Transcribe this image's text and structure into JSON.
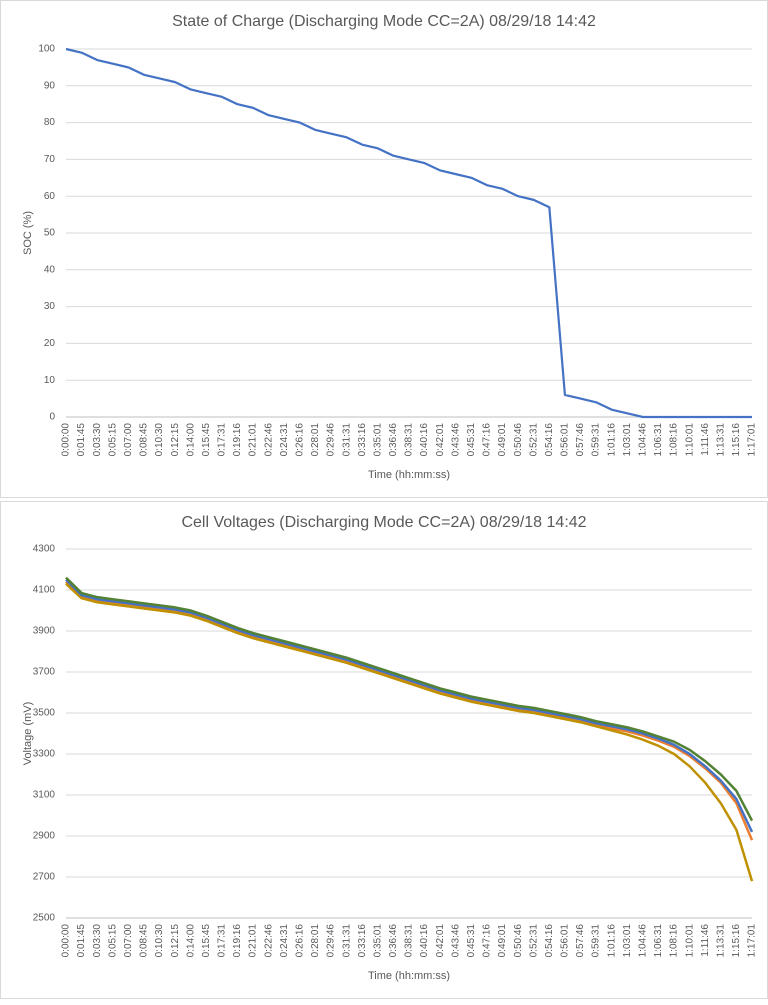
{
  "chart_data": [
    {
      "type": "line",
      "title": "State of Charge (Discharging Mode CC=2A) 08/29/18 14:42",
      "x_label": "Time (hh:mm:ss)",
      "y_label": "SOC (%)",
      "categories": [
        "0:00:00",
        "0:01:45",
        "0:03:30",
        "0:05:15",
        "0:07:00",
        "0:08:45",
        "0:10:30",
        "0:12:15",
        "0:14:00",
        "0:15:45",
        "0:17:31",
        "0:19:16",
        "0:21:01",
        "0:22:46",
        "0:24:31",
        "0:26:16",
        "0:28:01",
        "0:29:46",
        "0:31:31",
        "0:33:16",
        "0:35:01",
        "0:36:46",
        "0:38:31",
        "0:40:16",
        "0:42:01",
        "0:43:46",
        "0:45:31",
        "0:47:16",
        "0:49:01",
        "0:50:46",
        "0:52:31",
        "0:54:16",
        "0:56:01",
        "0:57:46",
        "0:59:31",
        "1:01:16",
        "1:03:01",
        "1:04:46",
        "1:06:31",
        "1:08:16",
        "1:10:01",
        "1:11:46",
        "1:13:31",
        "1:15:16",
        "1:17:01"
      ],
      "series": [
        {
          "color": "#4472c4",
          "values": [
            100,
            99,
            97,
            96,
            95,
            93,
            92,
            91,
            89,
            88,
            87,
            85,
            84,
            82,
            81,
            80,
            78,
            77,
            76,
            74,
            73,
            71,
            70,
            69,
            67,
            66,
            65,
            63,
            62,
            60,
            59,
            57,
            6,
            5,
            4,
            2,
            1,
            0,
            0,
            0,
            0,
            0,
            0,
            0,
            0
          ]
        }
      ],
      "ylim": [
        0,
        100
      ],
      "yticks": [
        0,
        10,
        20,
        30,
        40,
        50,
        60,
        70,
        80,
        90,
        100
      ],
      "grid": true
    },
    {
      "type": "line",
      "title": "Cell Voltages (Discharging Mode CC=2A) 08/29/18 14:42",
      "x_label": "Time (hh:mm:ss)",
      "y_label": "Voltage (mV)",
      "categories": [
        "0:00:00",
        "0:01:45",
        "0:03:30",
        "0:05:15",
        "0:07:00",
        "0:08:45",
        "0:10:30",
        "0:12:15",
        "0:14:00",
        "0:15:45",
        "0:17:31",
        "0:19:16",
        "0:21:01",
        "0:22:46",
        "0:24:31",
        "0:26:16",
        "0:28:01",
        "0:29:46",
        "0:31:31",
        "0:33:16",
        "0:35:01",
        "0:36:46",
        "0:38:31",
        "0:40:16",
        "0:42:01",
        "0:43:46",
        "0:45:31",
        "0:47:16",
        "0:49:01",
        "0:50:46",
        "0:52:31",
        "0:54:16",
        "0:56:01",
        "0:57:46",
        "0:59:31",
        "1:01:16",
        "1:03:01",
        "1:04:46",
        "1:06:31",
        "1:08:16",
        "1:10:01",
        "1:11:46",
        "1:13:31",
        "1:15:16",
        "1:17:01"
      ],
      "series": [
        {
          "color": "#ed7d31",
          "values": [
            4140,
            4065,
            4045,
            4035,
            4025,
            4015,
            4005,
            3995,
            3980,
            3955,
            3925,
            3895,
            3870,
            3850,
            3830,
            3810,
            3790,
            3770,
            3750,
            3725,
            3700,
            3675,
            3650,
            3625,
            3600,
            3580,
            3560,
            3545,
            3530,
            3515,
            3505,
            3490,
            3475,
            3460,
            3440,
            3425,
            3410,
            3390,
            3365,
            3335,
            3290,
            3230,
            3160,
            3060,
            2880
          ]
        },
        {
          "color": "#bf9000",
          "values": [
            4130,
            4060,
            4040,
            4030,
            4020,
            4010,
            4000,
            3990,
            3975,
            3950,
            3920,
            3890,
            3865,
            3845,
            3825,
            3805,
            3785,
            3765,
            3745,
            3720,
            3695,
            3670,
            3645,
            3620,
            3595,
            3575,
            3555,
            3540,
            3525,
            3510,
            3500,
            3485,
            3470,
            3455,
            3435,
            3415,
            3395,
            3370,
            3340,
            3300,
            3240,
            3160,
            3060,
            2930,
            2680
          ]
        },
        {
          "color": "#4472c4",
          "values": [
            4150,
            4075,
            4055,
            4045,
            4035,
            4025,
            4015,
            4005,
            3990,
            3965,
            3935,
            3905,
            3880,
            3860,
            3840,
            3820,
            3800,
            3780,
            3760,
            3735,
            3710,
            3685,
            3660,
            3635,
            3610,
            3590,
            3570,
            3555,
            3540,
            3525,
            3515,
            3500,
            3485,
            3470,
            3450,
            3435,
            3420,
            3400,
            3375,
            3345,
            3300,
            3240,
            3170,
            3080,
            2920
          ]
        },
        {
          "color": "#548235",
          "values": [
            4160,
            4085,
            4065,
            4055,
            4045,
            4035,
            4025,
            4015,
            4000,
            3975,
            3945,
            3915,
            3890,
            3870,
            3850,
            3830,
            3810,
            3790,
            3770,
            3745,
            3720,
            3695,
            3670,
            3645,
            3620,
            3600,
            3580,
            3565,
            3550,
            3535,
            3525,
            3510,
            3495,
            3480,
            3460,
            3445,
            3430,
            3410,
            3385,
            3360,
            3320,
            3265,
            3200,
            3120,
            2975
          ]
        }
      ],
      "ylim": [
        2500,
        4300
      ],
      "yticks": [
        2500,
        2700,
        2900,
        3100,
        3300,
        3500,
        3700,
        3900,
        4100,
        4300
      ],
      "grid": true
    }
  ]
}
